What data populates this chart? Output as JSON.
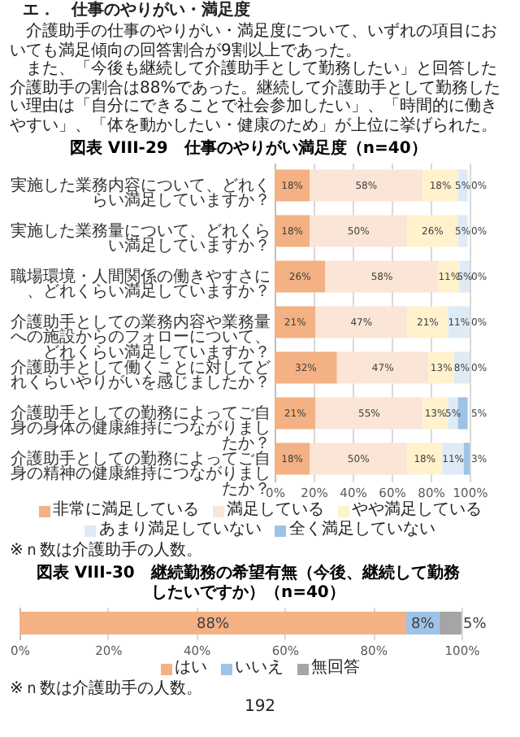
{
  "chart_data": [
    {
      "type": "other",
      "title": "エ．　仕事のやりがい・満足度",
      "annotations": [
        "介護助手の仕事のやりがい・満足度について、いずれの項目においても満足傾向の回答割合が9割以上であった。",
        "また、「今後も継続して介護助手として勤務したい」と回答した介護助手の割合は88%であった。継続して介護助手として勤務したい理由は「自分にできることで社会参加したい」、「時間的に働きやすい」、「体を動かしたい・健康のため」が上位に挙げられた。"
      ]
    },
    {
      "type": "bar",
      "orientation": "horizontal",
      "stacked": true,
      "title": "図表 VIII-29　仕事のやりがい満足度（n=40）",
      "categories": [
        "実施した業務内容について、どれくらい満足していますか？",
        "実施した業務量について、どれくらい満足していますか？",
        "職場環境・人間関係の働きやすさに、どれくらい満足していますか？",
        "介護助手としての業務内容や業務量への施設からのフォローについて、どれくらい満足していますか？",
        "介護助手として働くことに対してどれくらいやりがいを感じましたか？",
        "介護助手としての勤務によってご自身の身体の健康維持につながりましたか？",
        "介護助手としての勤務によってご自身の精神の健康維持につながりましたか？"
      ],
      "series": [
        {
          "name": "非常に満足している",
          "color": "#f4b183",
          "values": [
            18,
            18,
            26,
            21,
            32,
            21,
            18
          ],
          "value_labels": [
            "18%",
            "18%",
            "26%",
            "21%",
            "32%",
            "21%",
            "18%"
          ]
        },
        {
          "name": "満足している",
          "color": "#fbe5d6",
          "values": [
            58,
            50,
            58,
            47,
            47,
            55,
            50
          ],
          "value_labels": [
            "58%",
            "50%",
            "58%",
            "47%",
            "47%",
            "55%",
            "50%"
          ]
        },
        {
          "name": "やや満足している",
          "color": "#fff2cc",
          "values": [
            18,
            26,
            11,
            21,
            13,
            13,
            18
          ],
          "value_labels": [
            "18%",
            "26%",
            "11%",
            "21%",
            "13%",
            "13%",
            "18%"
          ]
        },
        {
          "name": "あまり満足していない",
          "color": "#deebf7",
          "values": [
            5,
            5,
            5,
            11,
            8,
            5,
            11
          ],
          "value_labels": [
            "5%",
            "5%",
            "5%",
            "11%",
            "8%",
            "5%",
            "11%"
          ]
        },
        {
          "name": "全く満足していない",
          "color": "#9dc3e6",
          "values": [
            0,
            0,
            0,
            0,
            0,
            5,
            3
          ],
          "value_labels": [
            "0%",
            "0%",
            "0%",
            "0%",
            "0%",
            "5%",
            "3%"
          ]
        }
      ],
      "xlim": [
        0,
        100
      ],
      "xticks": [
        {
          "value": 0,
          "label": "0%"
        },
        {
          "value": 20,
          "label": "20%"
        },
        {
          "value": 40,
          "label": "40%"
        },
        {
          "value": 60,
          "label": "60%"
        },
        {
          "value": 80,
          "label": "80%"
        },
        {
          "value": 100,
          "label": "100%"
        }
      ],
      "grid": "x",
      "legend": "bottom",
      "annotations": [
        "※ｎ数は介護助手の人数。"
      ]
    },
    {
      "type": "bar",
      "orientation": "horizontal",
      "stacked": true,
      "title": "図表 VIII-30　継続勤務の希望有無（今後、継続して勤務したいですか）（n=40）",
      "categories": [
        null
      ],
      "series": [
        {
          "name": "はい",
          "color": "#f4b183",
          "values": [
            87.5
          ],
          "value_labels": [
            "88%"
          ]
        },
        {
          "name": "いいえ",
          "color": "#9dc3e6",
          "values": [
            7.5
          ],
          "value_labels": [
            "8%"
          ]
        },
        {
          "name": "無回答",
          "color": "#a5a5a5",
          "values": [
            5
          ],
          "value_labels": [
            "5%"
          ]
        }
      ],
      "xlim": [
        0,
        100
      ],
      "xticks": [
        {
          "value": 0,
          "label": "0%"
        },
        {
          "value": 20,
          "label": "20%"
        },
        {
          "value": 40,
          "label": "40%"
        },
        {
          "value": 60,
          "label": "60%"
        },
        {
          "value": 80,
          "label": "80%"
        },
        {
          "value": 100,
          "label": "100%"
        }
      ],
      "grid": "x",
      "legend": "bottom",
      "tick_labels": "x",
      "annotations": [
        "※ｎ数は介護助手の人数。",
        "192"
      ]
    }
  ]
}
